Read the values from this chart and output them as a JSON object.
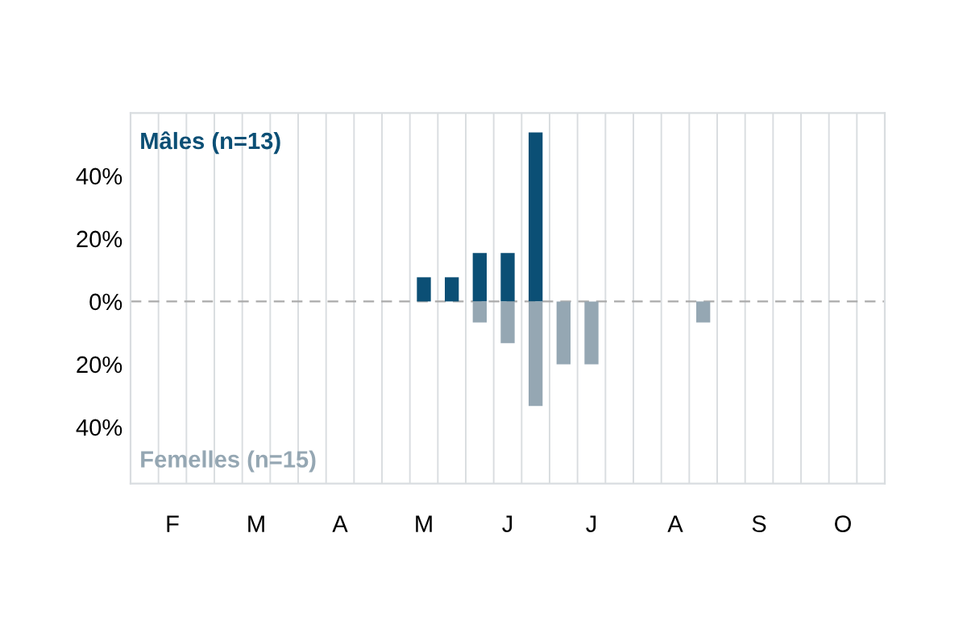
{
  "chart_data": {
    "type": "bar",
    "categories": [
      null,
      "F",
      null,
      null,
      "M",
      null,
      null,
      "A",
      null,
      null,
      "M",
      null,
      null,
      "J",
      null,
      null,
      "J",
      null,
      null,
      "A",
      null,
      null,
      "S",
      null,
      null,
      "O",
      null
    ],
    "series": [
      {
        "name": "Mâles (n=13)",
        "color": "#0b4f75",
        "values": [
          0,
          0,
          0,
          0,
          0,
          0,
          0,
          0,
          0,
          0,
          7.7,
          7.7,
          15.4,
          15.4,
          53.8,
          0,
          0,
          0,
          0,
          0,
          0,
          0,
          0,
          0,
          0,
          0,
          0
        ]
      },
      {
        "name": "Femelles (n=15)",
        "color": "#95a7b3",
        "values": [
          0,
          0,
          0,
          0,
          0,
          0,
          0,
          0,
          0,
          0,
          0,
          0,
          -6.7,
          -13.3,
          -33.3,
          -20,
          -20,
          0,
          0,
          0,
          -6.7,
          0,
          0,
          0,
          0,
          0,
          0
        ]
      }
    ],
    "ylim": [
      -58,
      60
    ],
    "yticks": [
      {
        "value": -40,
        "label": "40%"
      },
      {
        "value": -20,
        "label": "20%"
      },
      {
        "value": 0,
        "label": "0%"
      },
      {
        "value": 20,
        "label": "20%"
      },
      {
        "value": 40,
        "label": "40%"
      }
    ],
    "ref_lines": [
      {
        "axis": "y",
        "value": 0,
        "color": "#aaaaaa",
        "line_style": "dashed"
      }
    ],
    "grid": "x",
    "legend": false
  }
}
